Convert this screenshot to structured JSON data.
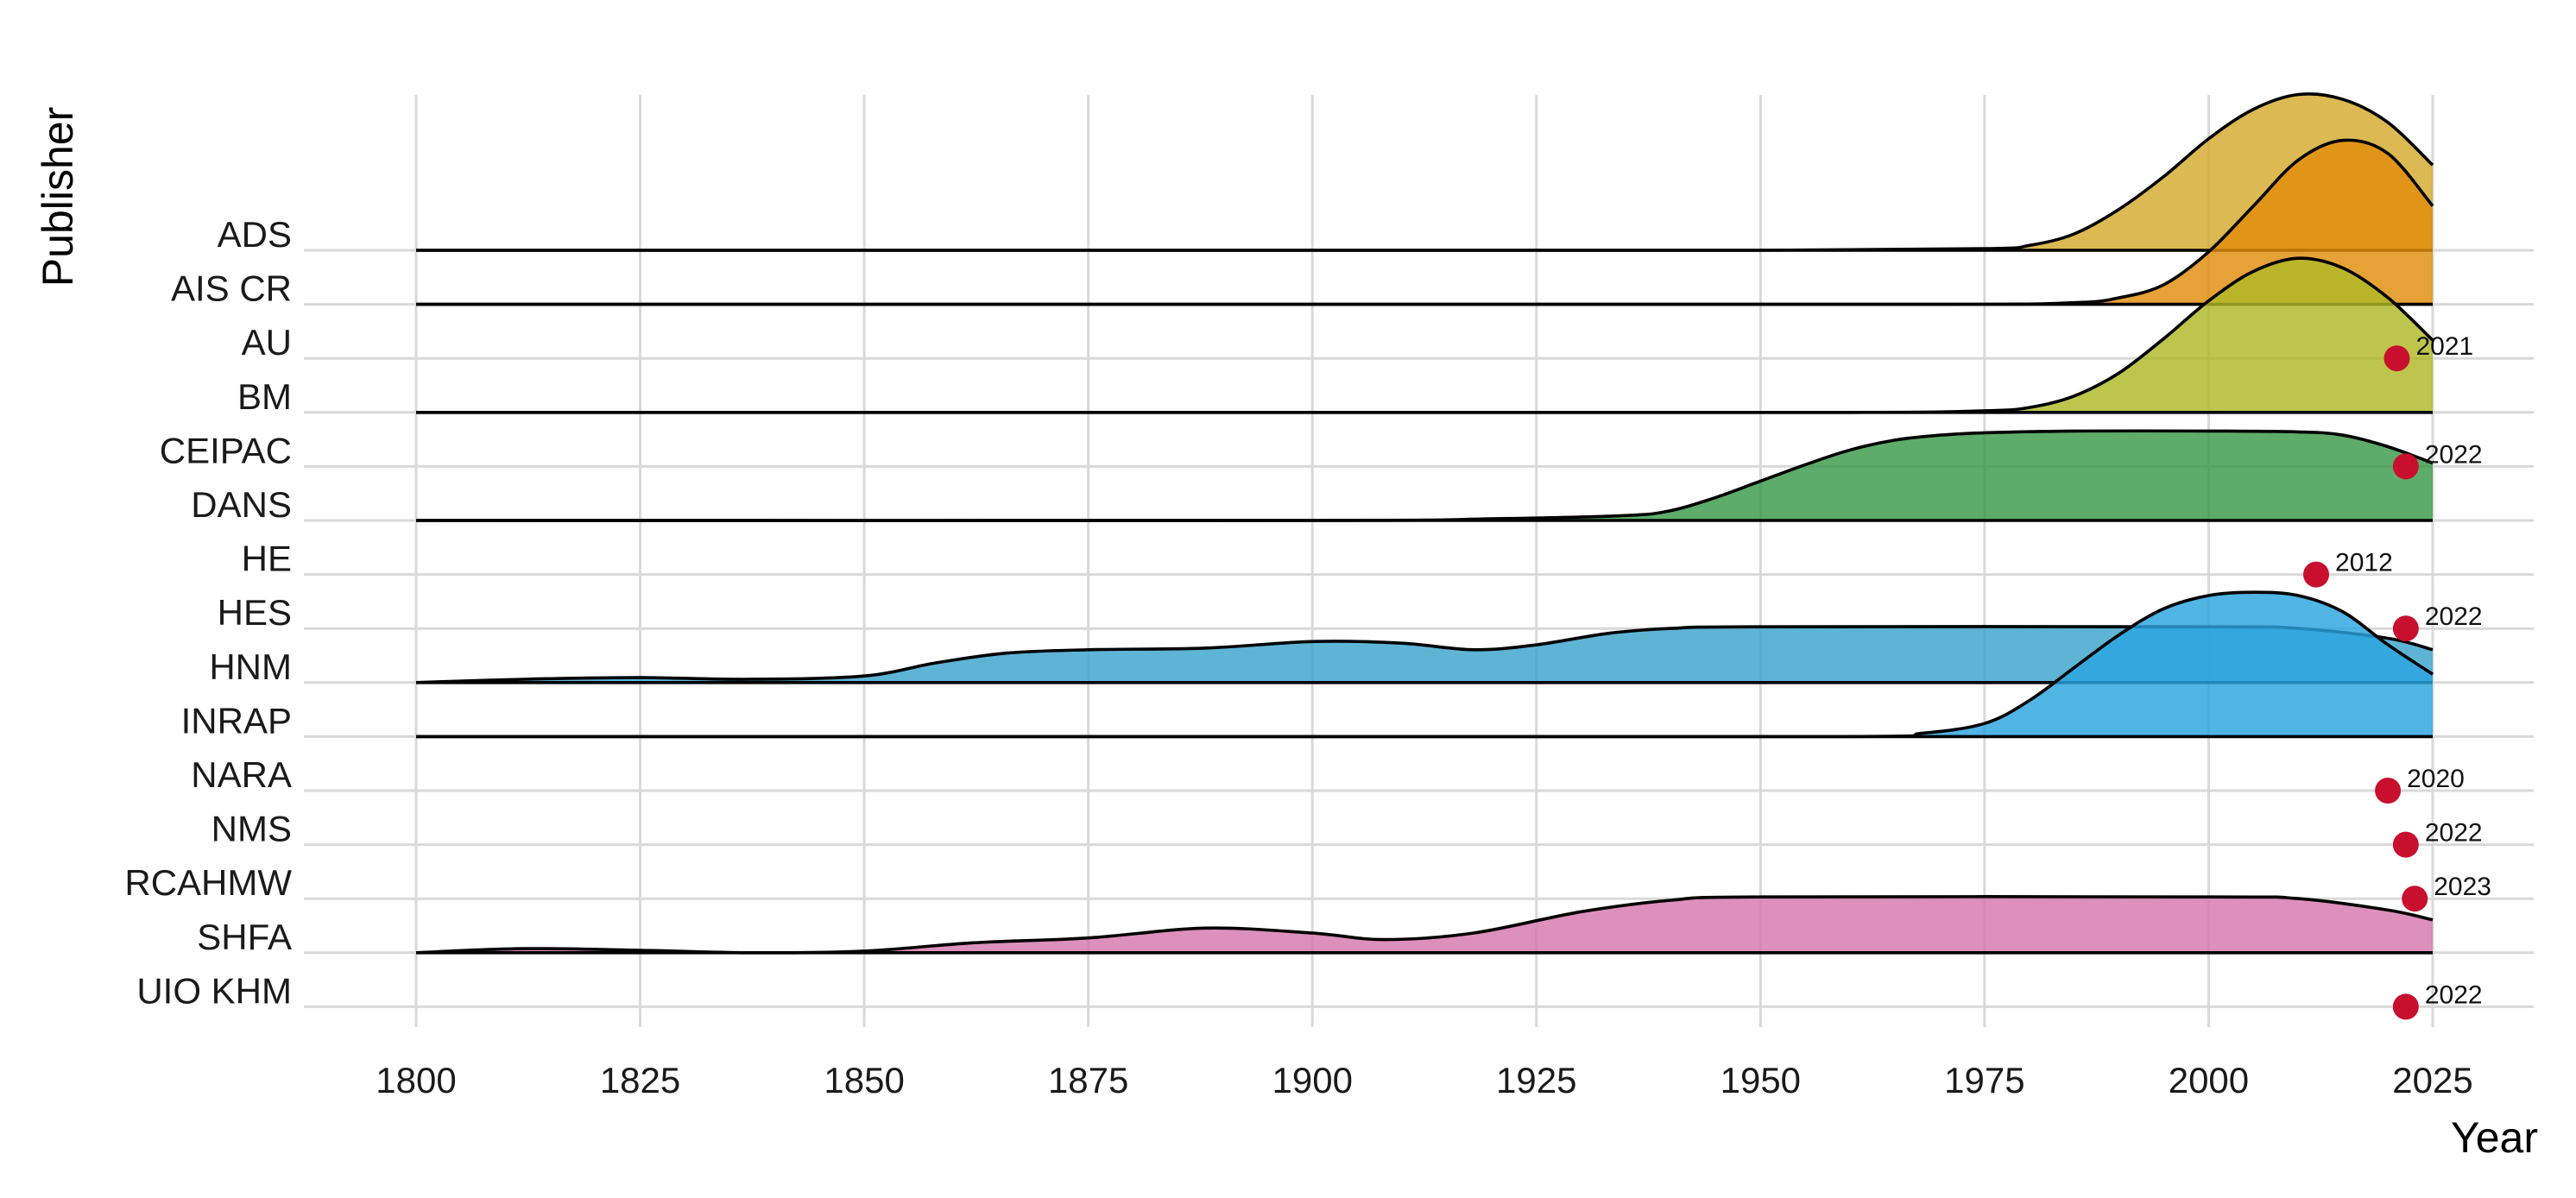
{
  "chart_data": {
    "type": "ridgeline",
    "xlabel": "Year",
    "ylabel": "Publisher",
    "xlim": [
      1800,
      2025
    ],
    "x_ticks": [
      1800,
      1825,
      1850,
      1875,
      1900,
      1925,
      1950,
      1975,
      2000,
      2025
    ],
    "x_tick_labels": [
      "1800",
      "1825",
      "1850",
      "1875",
      "1900",
      "1925",
      "1950",
      "1975",
      "2000",
      "2025"
    ],
    "categories": [
      "ADS",
      "AIS CR",
      "AU",
      "BM",
      "CEIPAC",
      "DANS",
      "HE",
      "HES",
      "HNM",
      "INRAP",
      "NARA",
      "NMS",
      "RCAHMW",
      "SHFA",
      "UIO KHM"
    ],
    "grid": true,
    "densities": [
      {
        "name": "ADS",
        "color": "#D4AA2C",
        "points": [
          [
            1800,
            0
          ],
          [
            1900,
            0
          ],
          [
            1950,
            0
          ],
          [
            1975,
            0.01
          ],
          [
            1980,
            0.03
          ],
          [
            1985,
            0.1
          ],
          [
            1990,
            0.25
          ],
          [
            1995,
            0.45
          ],
          [
            2000,
            0.68
          ],
          [
            2005,
            0.86
          ],
          [
            2010,
            0.95
          ],
          [
            2015,
            0.92
          ],
          [
            2020,
            0.78
          ],
          [
            2025,
            0.52
          ]
        ]
      },
      {
        "name": "AIS CR",
        "color": "#E08C0B",
        "points": [
          [
            1800,
            0
          ],
          [
            1900,
            0
          ],
          [
            1970,
            0
          ],
          [
            1985,
            0.01
          ],
          [
            1990,
            0.04
          ],
          [
            1995,
            0.12
          ],
          [
            2000,
            0.32
          ],
          [
            2005,
            0.6
          ],
          [
            2010,
            0.88
          ],
          [
            2015,
            1.0
          ],
          [
            2020,
            0.92
          ],
          [
            2025,
            0.6
          ]
        ]
      },
      {
        "name": "BM",
        "color": "#B0B826",
        "points": [
          [
            1800,
            0
          ],
          [
            1900,
            0
          ],
          [
            1960,
            0
          ],
          [
            1975,
            0.01
          ],
          [
            1980,
            0.03
          ],
          [
            1985,
            0.1
          ],
          [
            1990,
            0.24
          ],
          [
            1995,
            0.45
          ],
          [
            2000,
            0.68
          ],
          [
            2005,
            0.86
          ],
          [
            2010,
            0.94
          ],
          [
            2015,
            0.88
          ],
          [
            2020,
            0.7
          ],
          [
            2025,
            0.44
          ]
        ]
      },
      {
        "name": "DANS",
        "color": "#3A9A48",
        "points": [
          [
            1800,
            0
          ],
          [
            1900,
            0
          ],
          [
            1920,
            0.01
          ],
          [
            1935,
            0.03
          ],
          [
            1940,
            0.06
          ],
          [
            1945,
            0.14
          ],
          [
            1950,
            0.24
          ],
          [
            1955,
            0.34
          ],
          [
            1960,
            0.43
          ],
          [
            1965,
            0.49
          ],
          [
            1970,
            0.52
          ],
          [
            1975,
            0.535
          ],
          [
            1985,
            0.545
          ],
          [
            2000,
            0.545
          ],
          [
            2010,
            0.54
          ],
          [
            2015,
            0.52
          ],
          [
            2020,
            0.45
          ],
          [
            2025,
            0.35
          ]
        ]
      },
      {
        "name": "HNM",
        "color": "#3AA4CC",
        "points": [
          [
            1800,
            0
          ],
          [
            1812,
            0.02
          ],
          [
            1825,
            0.03
          ],
          [
            1837,
            0.02
          ],
          [
            1850,
            0.04
          ],
          [
            1858,
            0.12
          ],
          [
            1866,
            0.18
          ],
          [
            1875,
            0.2
          ],
          [
            1888,
            0.21
          ],
          [
            1900,
            0.25
          ],
          [
            1910,
            0.24
          ],
          [
            1918,
            0.2
          ],
          [
            1925,
            0.23
          ],
          [
            1933,
            0.3
          ],
          [
            1940,
            0.33
          ],
          [
            1950,
            0.34
          ],
          [
            2000,
            0.34
          ],
          [
            2010,
            0.33
          ],
          [
            2020,
            0.27
          ],
          [
            2025,
            0.2
          ]
        ]
      },
      {
        "name": "INRAP",
        "color": "#29A3DF",
        "points": [
          [
            1800,
            0
          ],
          [
            1900,
            0
          ],
          [
            1960,
            0
          ],
          [
            1968,
            0.02
          ],
          [
            1975,
            0.08
          ],
          [
            1980,
            0.22
          ],
          [
            1985,
            0.42
          ],
          [
            1990,
            0.62
          ],
          [
            1995,
            0.78
          ],
          [
            2000,
            0.86
          ],
          [
            2005,
            0.88
          ],
          [
            2010,
            0.86
          ],
          [
            2015,
            0.76
          ],
          [
            2020,
            0.56
          ],
          [
            2025,
            0.38
          ]
        ]
      },
      {
        "name": "SHFA",
        "color": "#D478AC",
        "points": [
          [
            1800,
            0
          ],
          [
            1812,
            0.025
          ],
          [
            1825,
            0.015
          ],
          [
            1837,
            0
          ],
          [
            1850,
            0.01
          ],
          [
            1862,
            0.06
          ],
          [
            1875,
            0.09
          ],
          [
            1888,
            0.15
          ],
          [
            1900,
            0.12
          ],
          [
            1908,
            0.08
          ],
          [
            1918,
            0.12
          ],
          [
            1930,
            0.25
          ],
          [
            1940,
            0.32
          ],
          [
            1950,
            0.34
          ],
          [
            2000,
            0.34
          ],
          [
            2010,
            0.33
          ],
          [
            2020,
            0.26
          ],
          [
            2025,
            0.2
          ]
        ]
      }
    ],
    "points": [
      {
        "name": "AU",
        "x": 2021,
        "label": "2021"
      },
      {
        "name": "CEIPAC",
        "x": 2022,
        "label": "2022"
      },
      {
        "name": "HE",
        "x": 2012,
        "label": "2012"
      },
      {
        "name": "HES",
        "x": 2022,
        "label": "2022"
      },
      {
        "name": "NARA",
        "x": 2020,
        "label": "2020"
      },
      {
        "name": "NMS",
        "x": 2022,
        "label": "2022"
      },
      {
        "name": "RCAHMW",
        "x": 2023,
        "label": "2023"
      },
      {
        "name": "UIO KHM",
        "x": 2022,
        "label": "2022"
      }
    ],
    "point_color": "#C8102E"
  }
}
